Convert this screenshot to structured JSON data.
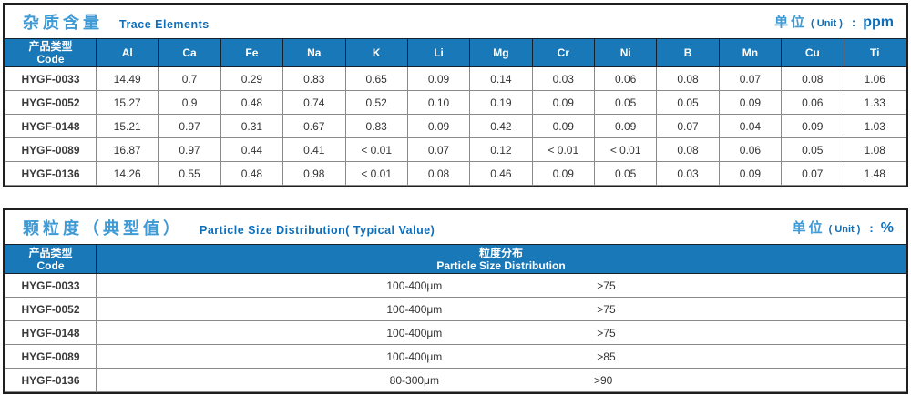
{
  "table1": {
    "title_zh": "杂质含量",
    "title_en": "Trace Elements",
    "unit_zh": "单位",
    "unit_en": "( Unit )",
    "unit_colon": ":",
    "unit_value": "ppm",
    "code_header_zh": "产品类型",
    "code_header_en": "Code",
    "columns": [
      "Al",
      "Ca",
      "Fe",
      "Na",
      "K",
      "Li",
      "Mg",
      "Cr",
      "Ni",
      "B",
      "Mn",
      "Cu",
      "Ti"
    ],
    "rows": [
      {
        "code": "HYGF-0033",
        "values": [
          "14.49",
          "0.7",
          "0.29",
          "0.83",
          "0.65",
          "0.09",
          "0.14",
          "0.03",
          "0.06",
          "0.08",
          "0.07",
          "0.08",
          "1.06"
        ]
      },
      {
        "code": "HYGF-0052",
        "values": [
          "15.27",
          "0.9",
          "0.48",
          "0.74",
          "0.52",
          "0.10",
          "0.19",
          "0.09",
          "0.05",
          "0.05",
          "0.09",
          "0.06",
          "1.33"
        ]
      },
      {
        "code": "HYGF-0148",
        "values": [
          "15.21",
          "0.97",
          "0.31",
          "0.67",
          "0.83",
          "0.09",
          "0.42",
          "0.09",
          "0.09",
          "0.07",
          "0.04",
          "0.09",
          "1.03"
        ]
      },
      {
        "code": "HYGF-0089",
        "values": [
          "16.87",
          "0.97",
          "0.44",
          "0.41",
          "< 0.01",
          "0.07",
          "0.12",
          "< 0.01",
          "< 0.01",
          "0.08",
          "0.06",
          "0.05",
          "1.08"
        ]
      },
      {
        "code": "HYGF-0136",
        "values": [
          "14.26",
          "0.55",
          "0.48",
          "0.98",
          "< 0.01",
          "0.08",
          "0.46",
          "0.09",
          "0.05",
          "0.03",
          "0.09",
          "0.07",
          "1.48"
        ]
      }
    ]
  },
  "table2": {
    "title_zh": "颗粒度（典型值）",
    "title_en": "Particle Size Distribution( Typical Value)",
    "unit_zh": "单位",
    "unit_en": "( Unit )",
    "unit_colon": ":",
    "unit_value": "%",
    "code_header_zh": "产品类型",
    "code_header_en": "Code",
    "dist_header_zh": "粒度分布",
    "dist_header_en": "Particle Size  Distribution",
    "rows": [
      {
        "code": "HYGF-0033",
        "range": "100-400μm",
        "percent": ">75"
      },
      {
        "code": "HYGF-0052",
        "range": "100-400μm",
        "percent": ">75"
      },
      {
        "code": "HYGF-0148",
        "range": "100-400μm",
        "percent": ">75"
      },
      {
        "code": "HYGF-0089",
        "range": "100-400μm",
        "percent": ">85"
      },
      {
        "code": "HYGF-0136",
        "range": "80-300μm",
        "percent": ">90"
      }
    ]
  }
}
